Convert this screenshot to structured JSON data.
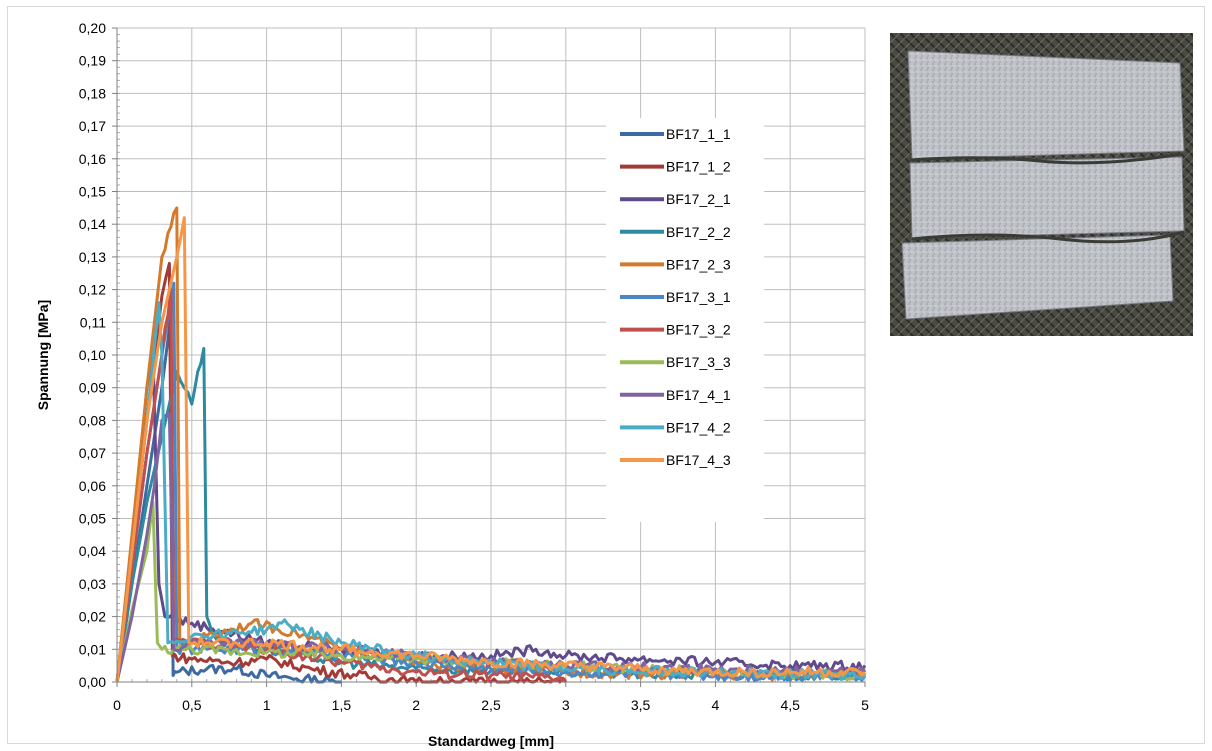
{
  "chart_data": {
    "type": "line",
    "title": "",
    "xlabel": "Standardweg [mm]",
    "ylabel": "Spannung [MPa]",
    "xlim": [
      0,
      5
    ],
    "ylim": [
      0,
      0.2
    ],
    "x_ticks": [
      "0",
      "0,5",
      "1",
      "1,5",
      "2",
      "2,5",
      "3",
      "3,5",
      "4",
      "4,5",
      "5"
    ],
    "y_ticks": [
      "0,00",
      "0,01",
      "0,02",
      "0,03",
      "0,04",
      "0,05",
      "0,06",
      "0,07",
      "0,08",
      "0,09",
      "0,10",
      "0,11",
      "0,12",
      "0,13",
      "0,14",
      "0,15",
      "0,16",
      "0,17",
      "0,18",
      "0,19",
      "0,20"
    ],
    "grid": true,
    "legend_position": "right of plot area, inside",
    "series": [
      {
        "name": "BF17_1_1",
        "color": "#3d6aa3",
        "x": [
          0,
          0.1,
          0.2,
          0.3,
          0.36,
          0.375,
          0.4,
          0.6,
          0.8,
          1.0,
          1.2,
          1.5
        ],
        "y": [
          0,
          0.03,
          0.06,
          0.09,
          0.112,
          0.002,
          0.003,
          0.004,
          0.004,
          0.002,
          0.001,
          0.0
        ]
      },
      {
        "name": "BF17_1_2",
        "color": "#a33a36",
        "x": [
          0,
          0.1,
          0.2,
          0.3,
          0.35,
          0.37,
          0.5,
          0.8,
          1.0,
          1.3,
          1.6,
          2.0,
          3.0
        ],
        "y": [
          0,
          0.04,
          0.08,
          0.118,
          0.128,
          0.008,
          0.007,
          0.006,
          0.007,
          0.004,
          0.002,
          0.0,
          0.0
        ]
      },
      {
        "name": "BF17_2_1",
        "color": "#5f4a8b",
        "x": [
          0,
          0.1,
          0.2,
          0.24,
          0.28,
          0.32,
          0.5,
          1.0,
          1.5,
          2.0,
          2.5,
          2.8,
          3.0,
          3.5,
          4.0,
          4.5,
          5.0
        ],
        "y": [
          0,
          0.04,
          0.09,
          0.102,
          0.03,
          0.02,
          0.018,
          0.012,
          0.01,
          0.008,
          0.008,
          0.01,
          0.008,
          0.007,
          0.006,
          0.005,
          0.005
        ]
      },
      {
        "name": "BF17_2_2",
        "color": "#2e8aa0",
        "x": [
          0,
          0.1,
          0.2,
          0.3,
          0.4,
          0.45,
          0.5,
          0.54,
          0.58,
          0.6,
          0.65,
          0.8,
          1.0,
          1.5,
          2.0,
          3.0,
          4.0,
          5.0
        ],
        "y": [
          0,
          0.03,
          0.055,
          0.075,
          0.095,
          0.09,
          0.085,
          0.095,
          0.102,
          0.02,
          0.014,
          0.012,
          0.01,
          0.006,
          0.004,
          0.003,
          0.002,
          0.002
        ]
      },
      {
        "name": "BF17_2_3",
        "color": "#d47a2c",
        "x": [
          0,
          0.1,
          0.2,
          0.3,
          0.4,
          0.42,
          0.6,
          0.9,
          1.2,
          1.5,
          2.0,
          2.5,
          3.0,
          4.0,
          5.0
        ],
        "y": [
          0,
          0.045,
          0.09,
          0.13,
          0.145,
          0.012,
          0.014,
          0.018,
          0.015,
          0.01,
          0.006,
          0.004,
          0.003,
          0.002,
          0.002
        ]
      },
      {
        "name": "BF17_3_1",
        "color": "#4a86c8",
        "x": [
          0,
          0.1,
          0.2,
          0.3,
          0.38,
          0.4,
          0.6,
          1.0,
          1.5,
          2.0,
          2.5,
          3.0,
          4.0,
          5.0
        ],
        "y": [
          0,
          0.035,
          0.07,
          0.1,
          0.122,
          0.01,
          0.01,
          0.01,
          0.008,
          0.006,
          0.004,
          0.003,
          0.002,
          0.002
        ]
      },
      {
        "name": "BF17_3_2",
        "color": "#c0504d",
        "x": [
          0,
          0.1,
          0.2,
          0.3,
          0.36,
          0.38,
          0.6,
          1.0,
          1.5,
          2.0,
          2.5,
          3.0
        ],
        "y": [
          0,
          0.035,
          0.07,
          0.1,
          0.12,
          0.012,
          0.012,
          0.01,
          0.006,
          0.003,
          0.002,
          0.001
        ]
      },
      {
        "name": "BF17_3_3",
        "color": "#9bbb59",
        "x": [
          0,
          0.1,
          0.2,
          0.24,
          0.27,
          0.3,
          0.5,
          1.0,
          1.5,
          2.0,
          2.5,
          3.0,
          3.5,
          4.0,
          5.0
        ],
        "y": [
          0,
          0.022,
          0.04,
          0.055,
          0.012,
          0.01,
          0.01,
          0.009,
          0.008,
          0.007,
          0.006,
          0.005,
          0.004,
          0.003,
          0.002
        ]
      },
      {
        "name": "BF17_4_1",
        "color": "#8064a2",
        "x": [
          0,
          0.1,
          0.2,
          0.25,
          0.3,
          0.35,
          0.38,
          0.5,
          1.0,
          1.5,
          2.0,
          2.5,
          3.0,
          4.0,
          5.0
        ],
        "y": [
          0,
          0.02,
          0.045,
          0.06,
          0.08,
          0.082,
          0.01,
          0.012,
          0.012,
          0.01,
          0.008,
          0.006,
          0.005,
          0.004,
          0.003
        ]
      },
      {
        "name": "BF17_4_2",
        "color": "#4bacc6",
        "x": [
          0,
          0.1,
          0.2,
          0.28,
          0.3,
          0.34,
          0.5,
          1.0,
          1.1,
          1.5,
          2.0,
          2.5,
          3.0,
          4.0,
          5.0
        ],
        "y": [
          0,
          0.04,
          0.08,
          0.116,
          0.1,
          0.012,
          0.014,
          0.016,
          0.018,
          0.012,
          0.008,
          0.006,
          0.004,
          0.003,
          0.002
        ]
      },
      {
        "name": "BF17_4_3",
        "color": "#f79646",
        "x": [
          0,
          0.1,
          0.2,
          0.3,
          0.4,
          0.45,
          0.48,
          0.6,
          1.0,
          1.5,
          2.0,
          2.5,
          3.0,
          3.5,
          4.0,
          4.5,
          5.0
        ],
        "y": [
          0,
          0.04,
          0.08,
          0.11,
          0.13,
          0.142,
          0.012,
          0.012,
          0.012,
          0.01,
          0.008,
          0.006,
          0.005,
          0.004,
          0.003,
          0.003,
          0.003
        ]
      }
    ]
  }
}
